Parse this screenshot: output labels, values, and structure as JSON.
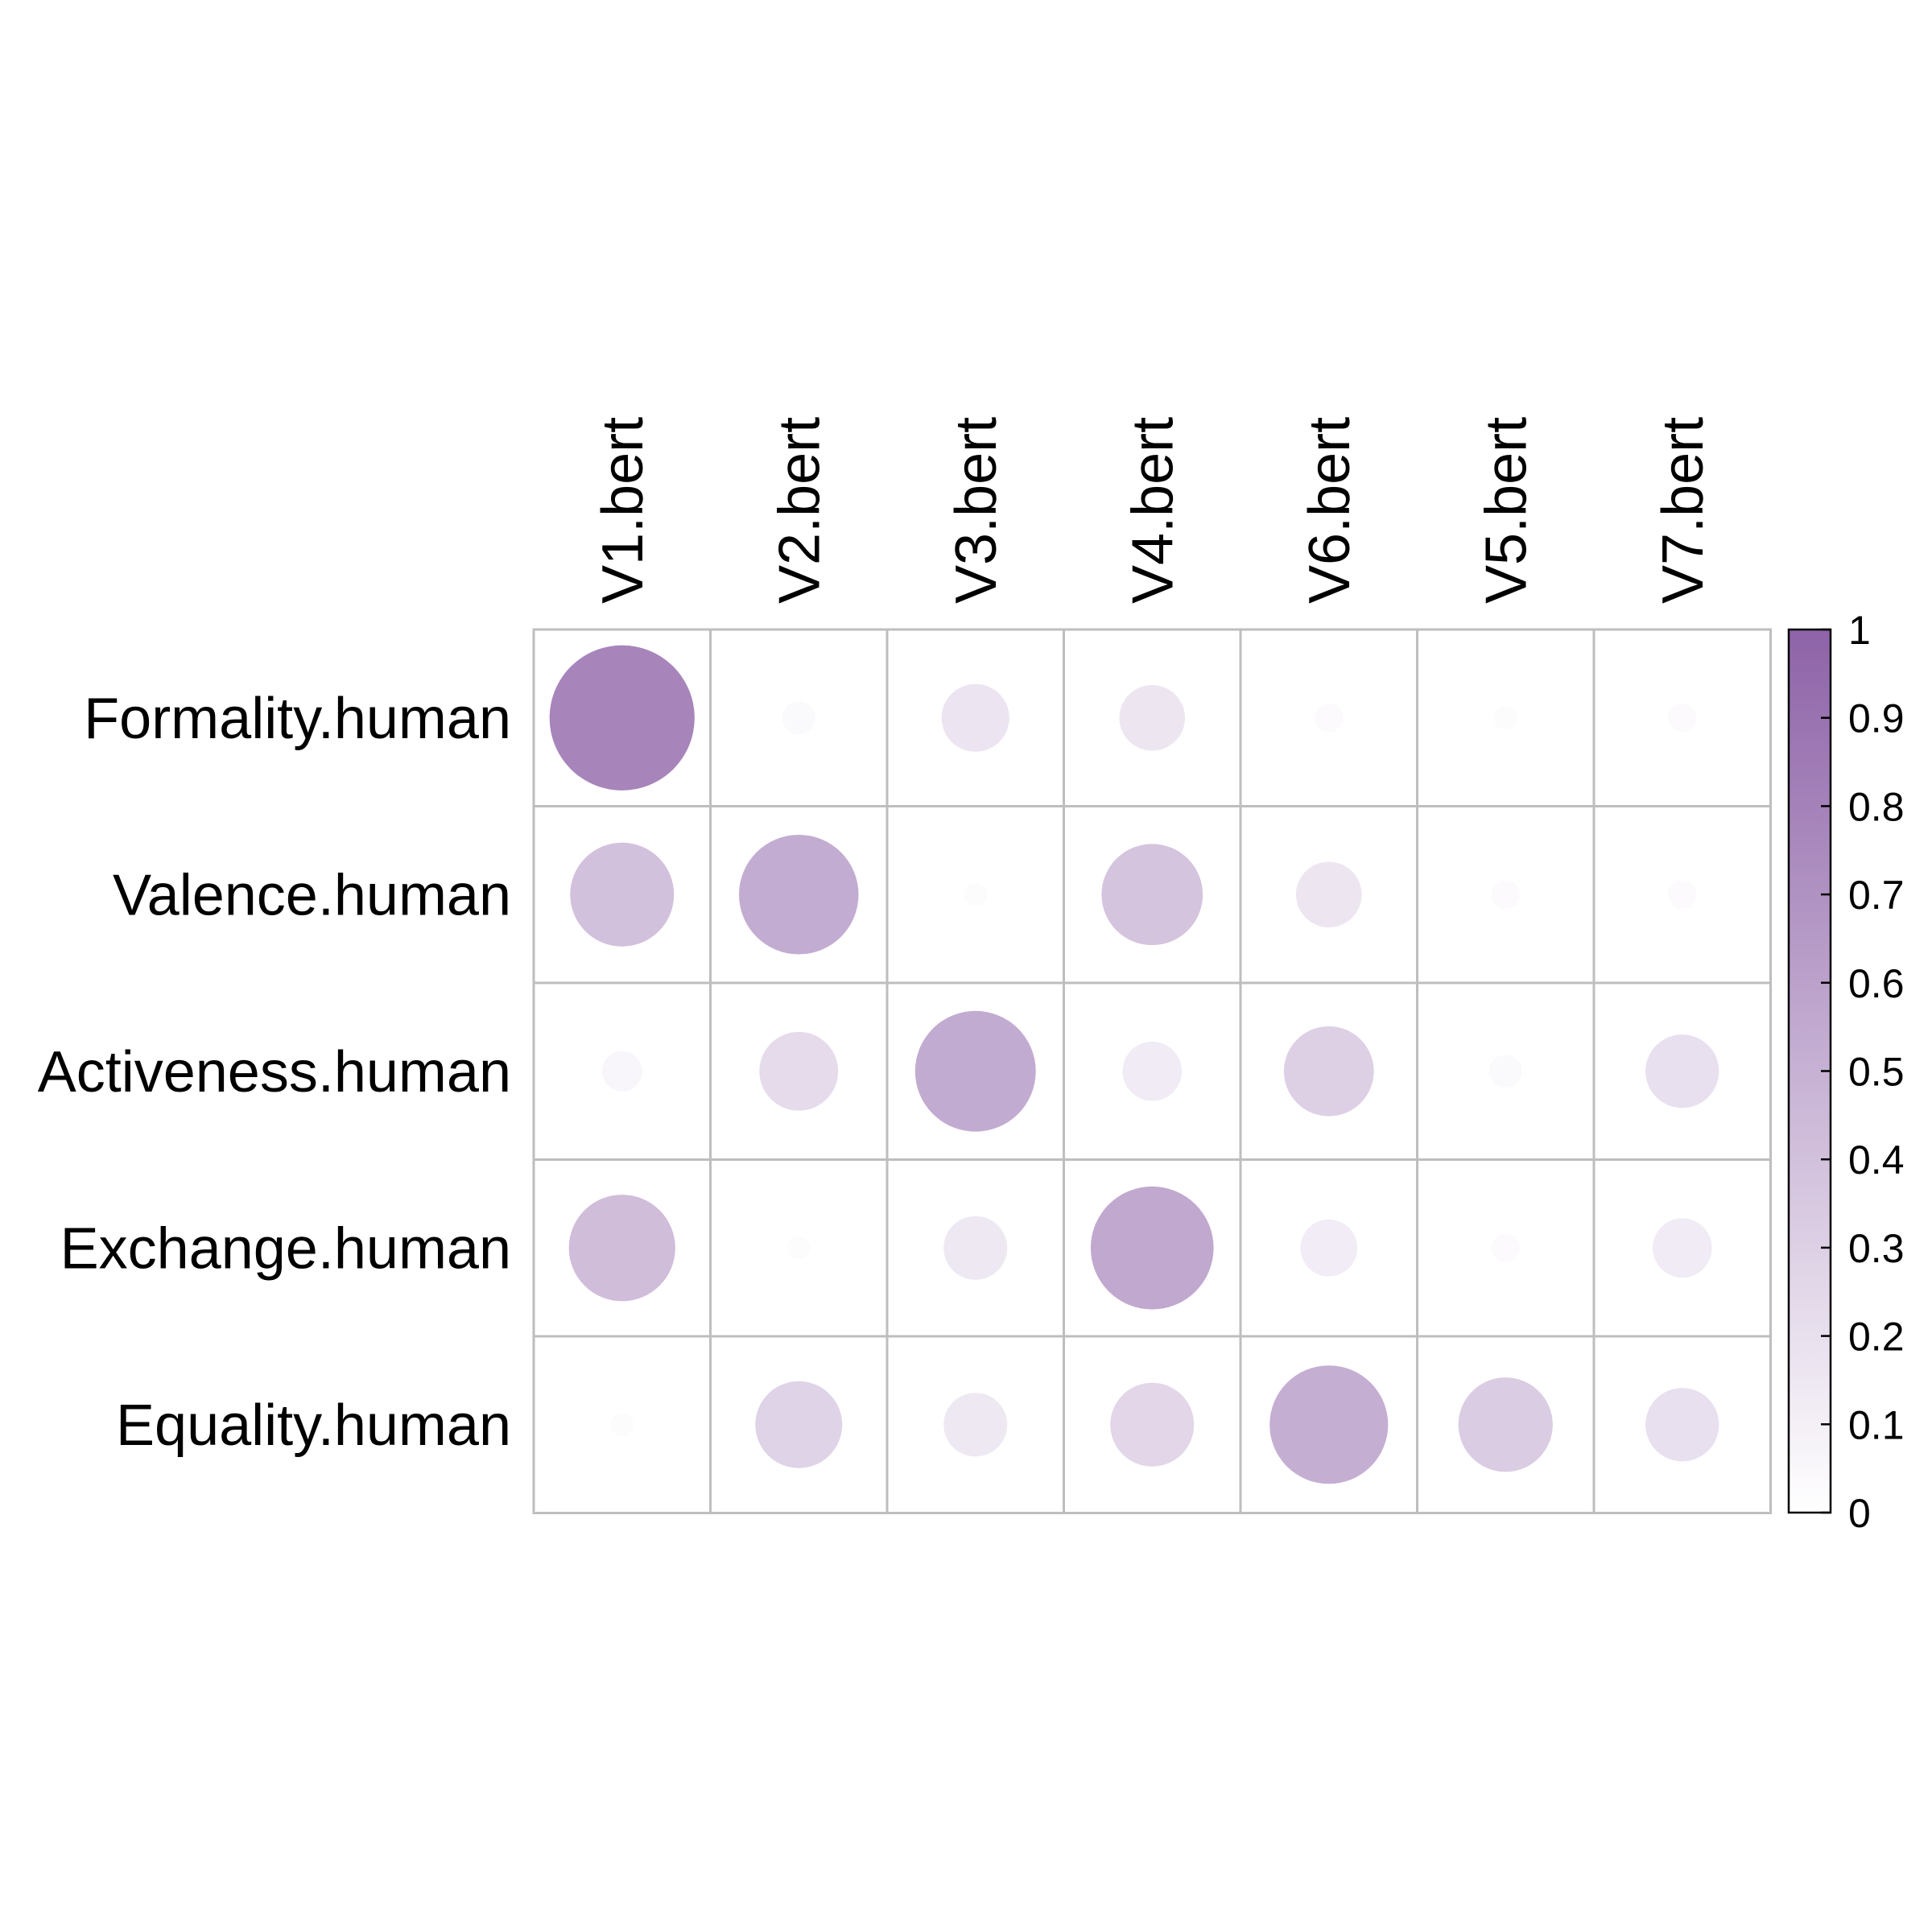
{
  "chart_data": {
    "type": "heatmap",
    "subtype": "correlation-circle-plot",
    "title": "",
    "columns": [
      "V1.bert",
      "V2.bert",
      "V3.bert",
      "V4.bert",
      "V6.bert",
      "V5.bert",
      "V7.bert"
    ],
    "rows": [
      "Formality.human",
      "Valence.human",
      "Activeness.human",
      "Exchange.human",
      "Equality.human"
    ],
    "values": [
      [
        0.78,
        0.04,
        0.17,
        0.16,
        0.03,
        0.02,
        0.03
      ],
      [
        0.4,
        0.53,
        0.02,
        0.38,
        0.16,
        0.03,
        0.03
      ],
      [
        0.06,
        0.23,
        0.54,
        0.13,
        0.3,
        0.04,
        0.2
      ],
      [
        0.42,
        0.02,
        0.15,
        0.56,
        0.12,
        0.03,
        0.13
      ],
      [
        0.02,
        0.28,
        0.15,
        0.26,
        0.52,
        0.33,
        0.2
      ]
    ],
    "colorbar": {
      "min": 0,
      "max": 1,
      "ticks": [
        "0",
        "0.1",
        "0.2",
        "0.3",
        "0.4",
        "0.5",
        "0.6",
        "0.7",
        "0.8",
        "0.9",
        "1"
      ],
      "color_low": "#ffffff",
      "color_high": "#8e63a8"
    },
    "grid": true,
    "grid_color": "#bebebe",
    "legend_position": "right"
  }
}
